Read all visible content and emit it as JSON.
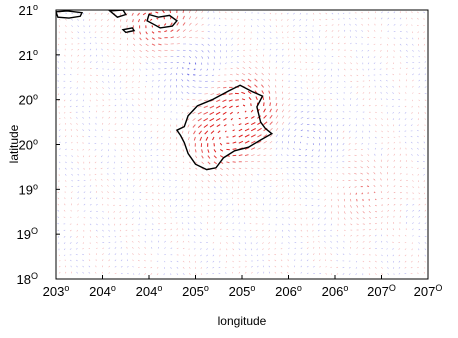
{
  "chart_data": {
    "type": "quiver",
    "xlabel": "longitude",
    "ylabel": "latitude",
    "x_tick_labels": [
      {
        "value": 203.0,
        "text": "203",
        "deg": "o"
      },
      {
        "value": 203.5,
        "text": "204",
        "deg": "o"
      },
      {
        "value": 204.0,
        "text": "204",
        "deg": "o"
      },
      {
        "value": 204.5,
        "text": "205",
        "deg": "o"
      },
      {
        "value": 205.0,
        "text": "205",
        "deg": "o"
      },
      {
        "value": 205.5,
        "text": "206",
        "deg": "o"
      },
      {
        "value": 206.0,
        "text": "206",
        "deg": "o"
      },
      {
        "value": 206.5,
        "text": "207",
        "deg": "O"
      },
      {
        "value": 207.0,
        "text": "207",
        "deg": "O"
      }
    ],
    "y_tick_labels": [
      {
        "value": 18.0,
        "text": "18",
        "deg": "O"
      },
      {
        "value": 18.5,
        "text": "19",
        "deg": "O"
      },
      {
        "value": 19.0,
        "text": "19",
        "deg": "o"
      },
      {
        "value": 19.5,
        "text": "20",
        "deg": "o"
      },
      {
        "value": 20.0,
        "text": "20",
        "deg": "o"
      },
      {
        "value": 20.5,
        "text": "21",
        "deg": "o"
      },
      {
        "value": 21.0,
        "text": "21",
        "deg": "o"
      }
    ],
    "xlim": [
      203.0,
      207.0
    ],
    "ylim": [
      18.0,
      21.0
    ],
    "grid": false,
    "colors": {
      "positive": "#e02020",
      "negative": "#2020d8",
      "coastline": "#000000"
    },
    "coastlines": [
      {
        "name": "hawaii",
        "points": [
          [
            204.8,
            19.35
          ],
          [
            204.92,
            19.43
          ],
          [
            205.07,
            19.47
          ],
          [
            205.2,
            19.55
          ],
          [
            205.32,
            19.62
          ],
          [
            205.25,
            19.68
          ],
          [
            205.2,
            19.75
          ],
          [
            205.16,
            19.92
          ],
          [
            205.22,
            20.04
          ],
          [
            205.11,
            20.09
          ],
          [
            204.98,
            20.16
          ],
          [
            204.86,
            20.1
          ],
          [
            204.68,
            20.0
          ],
          [
            204.52,
            19.93
          ],
          [
            204.42,
            19.82
          ],
          [
            204.38,
            19.7
          ],
          [
            204.3,
            19.66
          ],
          [
            204.34,
            19.6
          ],
          [
            204.38,
            19.52
          ],
          [
            204.42,
            19.4
          ],
          [
            204.5,
            19.28
          ],
          [
            204.62,
            19.22
          ],
          [
            204.72,
            19.24
          ],
          [
            204.8,
            19.35
          ]
        ]
      },
      {
        "name": "maui",
        "points": [
          [
            204.0,
            20.95
          ],
          [
            204.1,
            20.92
          ],
          [
            204.22,
            20.94
          ],
          [
            204.3,
            20.88
          ],
          [
            204.25,
            20.82
          ],
          [
            204.12,
            20.8
          ],
          [
            204.05,
            20.84
          ],
          [
            203.98,
            20.88
          ],
          [
            204.0,
            20.95
          ]
        ]
      },
      {
        "name": "molokai",
        "points": [
          [
            203.0,
            20.98
          ],
          [
            203.12,
            20.99
          ],
          [
            203.28,
            20.97
          ],
          [
            203.26,
            20.93
          ],
          [
            203.14,
            20.91
          ],
          [
            203.02,
            20.92
          ],
          [
            203.0,
            20.98
          ]
        ]
      },
      {
        "name": "kahoolawe",
        "points": [
          [
            203.72,
            20.78
          ],
          [
            203.82,
            20.8
          ],
          [
            203.84,
            20.77
          ],
          [
            203.75,
            20.75
          ],
          [
            203.72,
            20.78
          ]
        ]
      },
      {
        "name": "lanai",
        "points": [
          [
            203.58,
            20.99
          ],
          [
            203.72,
            21.0
          ],
          [
            203.75,
            20.95
          ],
          [
            203.66,
            20.92
          ],
          [
            203.58,
            20.99
          ]
        ]
      }
    ],
    "field_centers": [
      {
        "x": 205.05,
        "y": 19.9,
        "amp": 1.0
      },
      {
        "x": 204.78,
        "y": 19.58,
        "amp": 1.0
      },
      {
        "x": 204.1,
        "y": 20.88,
        "amp": 0.8
      },
      {
        "x": 206.33,
        "y": 18.95,
        "amp": 0.35
      },
      {
        "x": 204.45,
        "y": 20.35,
        "amp": -0.35
      },
      {
        "x": 205.7,
        "y": 19.55,
        "amp": -0.3
      }
    ]
  }
}
